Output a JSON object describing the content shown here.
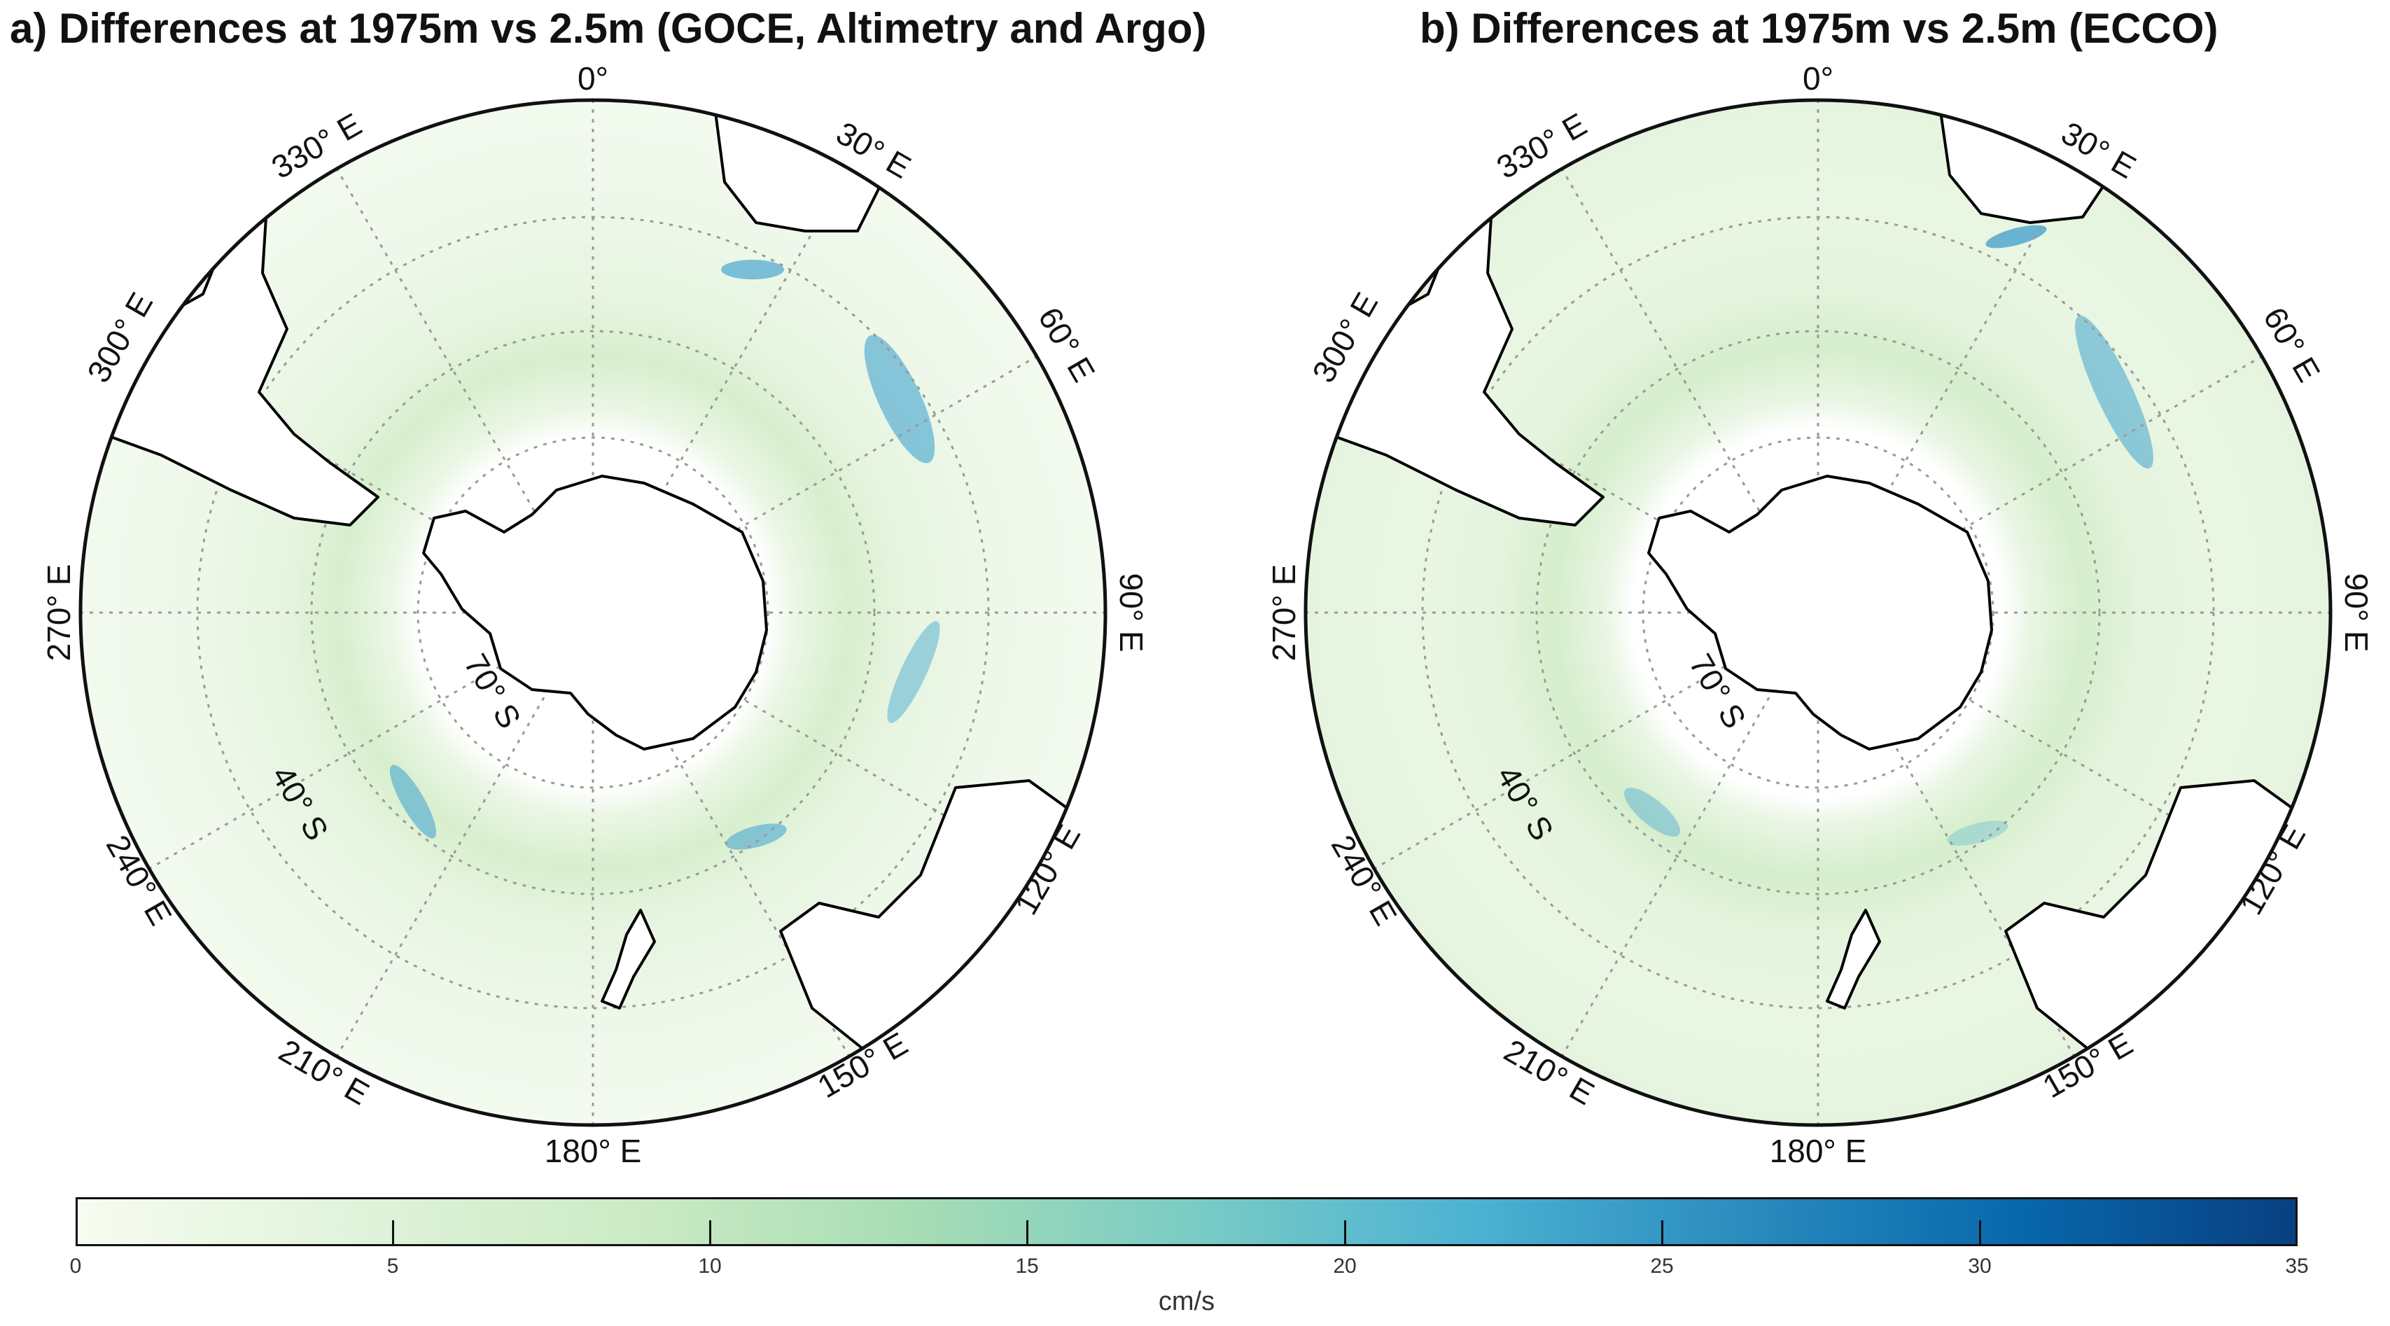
{
  "panels": [
    {
      "title": "a) Differences at 1975m vs 2.5m (GOCE, Altimetry and Argo)",
      "source": "GOCE, Altimetry and Argo"
    },
    {
      "title": "b) Differences at 1975m vs 2.5m (ECCO)",
      "source": "ECCO"
    }
  ],
  "map": {
    "projection": "south polar stereographic",
    "longitude_labels": [
      "0°",
      "30° E",
      "60° E",
      "90° E",
      "120° E",
      "150° E",
      "180° E",
      "210° E",
      "240° E",
      "270° E",
      "300° E",
      "330° E"
    ],
    "latitude_labels": [
      "70° S",
      "40° S"
    ]
  },
  "colorbar": {
    "unit": "cm/s",
    "min": 0,
    "max": 35,
    "ticks": [
      "0",
      "5",
      "10",
      "15",
      "20",
      "25",
      "30",
      "35"
    ],
    "colors": [
      "#f7fcf0",
      "#e0f3db",
      "#ccebc5",
      "#a8ddb5",
      "#7bccc4",
      "#4eb3d3",
      "#2b8cbe",
      "#0868ac",
      "#084081"
    ]
  }
}
